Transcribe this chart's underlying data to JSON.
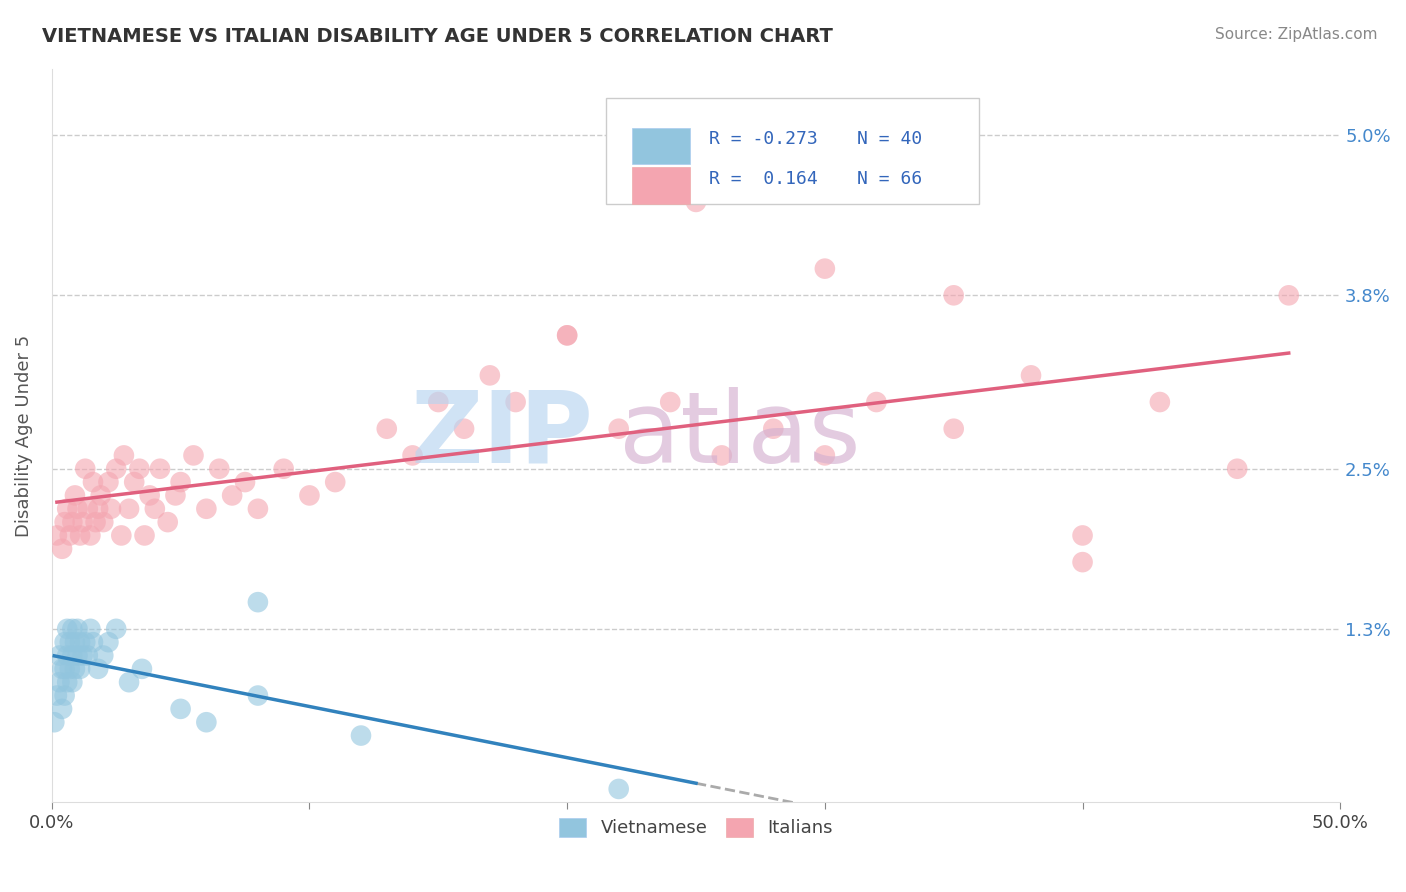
{
  "title": "VIETNAMESE VS ITALIAN DISABILITY AGE UNDER 5 CORRELATION CHART",
  "source": "Source: ZipAtlas.com",
  "ylabel": "Disability Age Under 5",
  "xlim": [
    0.0,
    0.5
  ],
  "ylim": [
    0.0,
    0.055
  ],
  "ytick_labels": [
    "1.3%",
    "2.5%",
    "3.8%",
    "5.0%"
  ],
  "ytick_positions": [
    0.013,
    0.025,
    0.038,
    0.05
  ],
  "legend_r_viet": "-0.273",
  "legend_n_viet": "40",
  "legend_r_ital": "0.164",
  "legend_n_ital": "66",
  "viet_color": "#92c5de",
  "ital_color": "#f4a5b0",
  "viet_line_color": "#3182bd",
  "ital_line_color": "#e0607e",
  "viet_x": [
    0.001,
    0.002,
    0.003,
    0.003,
    0.004,
    0.004,
    0.005,
    0.005,
    0.005,
    0.006,
    0.006,
    0.006,
    0.007,
    0.007,
    0.008,
    0.008,
    0.008,
    0.009,
    0.009,
    0.01,
    0.01,
    0.011,
    0.011,
    0.012,
    0.013,
    0.014,
    0.015,
    0.016,
    0.018,
    0.02,
    0.022,
    0.025,
    0.03,
    0.035,
    0.05,
    0.06,
    0.08,
    0.12,
    0.22,
    0.08
  ],
  "viet_y": [
    0.006,
    0.008,
    0.009,
    0.011,
    0.007,
    0.01,
    0.008,
    0.01,
    0.012,
    0.009,
    0.011,
    0.013,
    0.01,
    0.012,
    0.009,
    0.011,
    0.013,
    0.01,
    0.012,
    0.011,
    0.013,
    0.01,
    0.012,
    0.011,
    0.012,
    0.011,
    0.013,
    0.012,
    0.01,
    0.011,
    0.012,
    0.013,
    0.009,
    0.01,
    0.007,
    0.006,
    0.008,
    0.005,
    0.001,
    0.015
  ],
  "ital_x": [
    0.002,
    0.004,
    0.005,
    0.006,
    0.007,
    0.008,
    0.009,
    0.01,
    0.011,
    0.012,
    0.013,
    0.014,
    0.015,
    0.016,
    0.017,
    0.018,
    0.019,
    0.02,
    0.022,
    0.023,
    0.025,
    0.027,
    0.028,
    0.03,
    0.032,
    0.034,
    0.036,
    0.038,
    0.04,
    0.042,
    0.045,
    0.048,
    0.05,
    0.055,
    0.06,
    0.065,
    0.07,
    0.075,
    0.08,
    0.09,
    0.1,
    0.11,
    0.13,
    0.14,
    0.15,
    0.16,
    0.17,
    0.18,
    0.2,
    0.22,
    0.24,
    0.26,
    0.28,
    0.3,
    0.32,
    0.35,
    0.38,
    0.4,
    0.43,
    0.46,
    0.48,
    0.3,
    0.25,
    0.2,
    0.35,
    0.4
  ],
  "ital_y": [
    0.02,
    0.019,
    0.021,
    0.022,
    0.02,
    0.021,
    0.023,
    0.022,
    0.02,
    0.021,
    0.025,
    0.022,
    0.02,
    0.024,
    0.021,
    0.022,
    0.023,
    0.021,
    0.024,
    0.022,
    0.025,
    0.02,
    0.026,
    0.022,
    0.024,
    0.025,
    0.02,
    0.023,
    0.022,
    0.025,
    0.021,
    0.023,
    0.024,
    0.026,
    0.022,
    0.025,
    0.023,
    0.024,
    0.022,
    0.025,
    0.023,
    0.024,
    0.028,
    0.026,
    0.03,
    0.028,
    0.032,
    0.03,
    0.035,
    0.028,
    0.03,
    0.026,
    0.028,
    0.026,
    0.03,
    0.028,
    0.032,
    0.018,
    0.03,
    0.025,
    0.038,
    0.04,
    0.045,
    0.035,
    0.038,
    0.02
  ],
  "watermark_zip_color": "#b8d4f0",
  "watermark_atlas_color": "#d4b0d0"
}
